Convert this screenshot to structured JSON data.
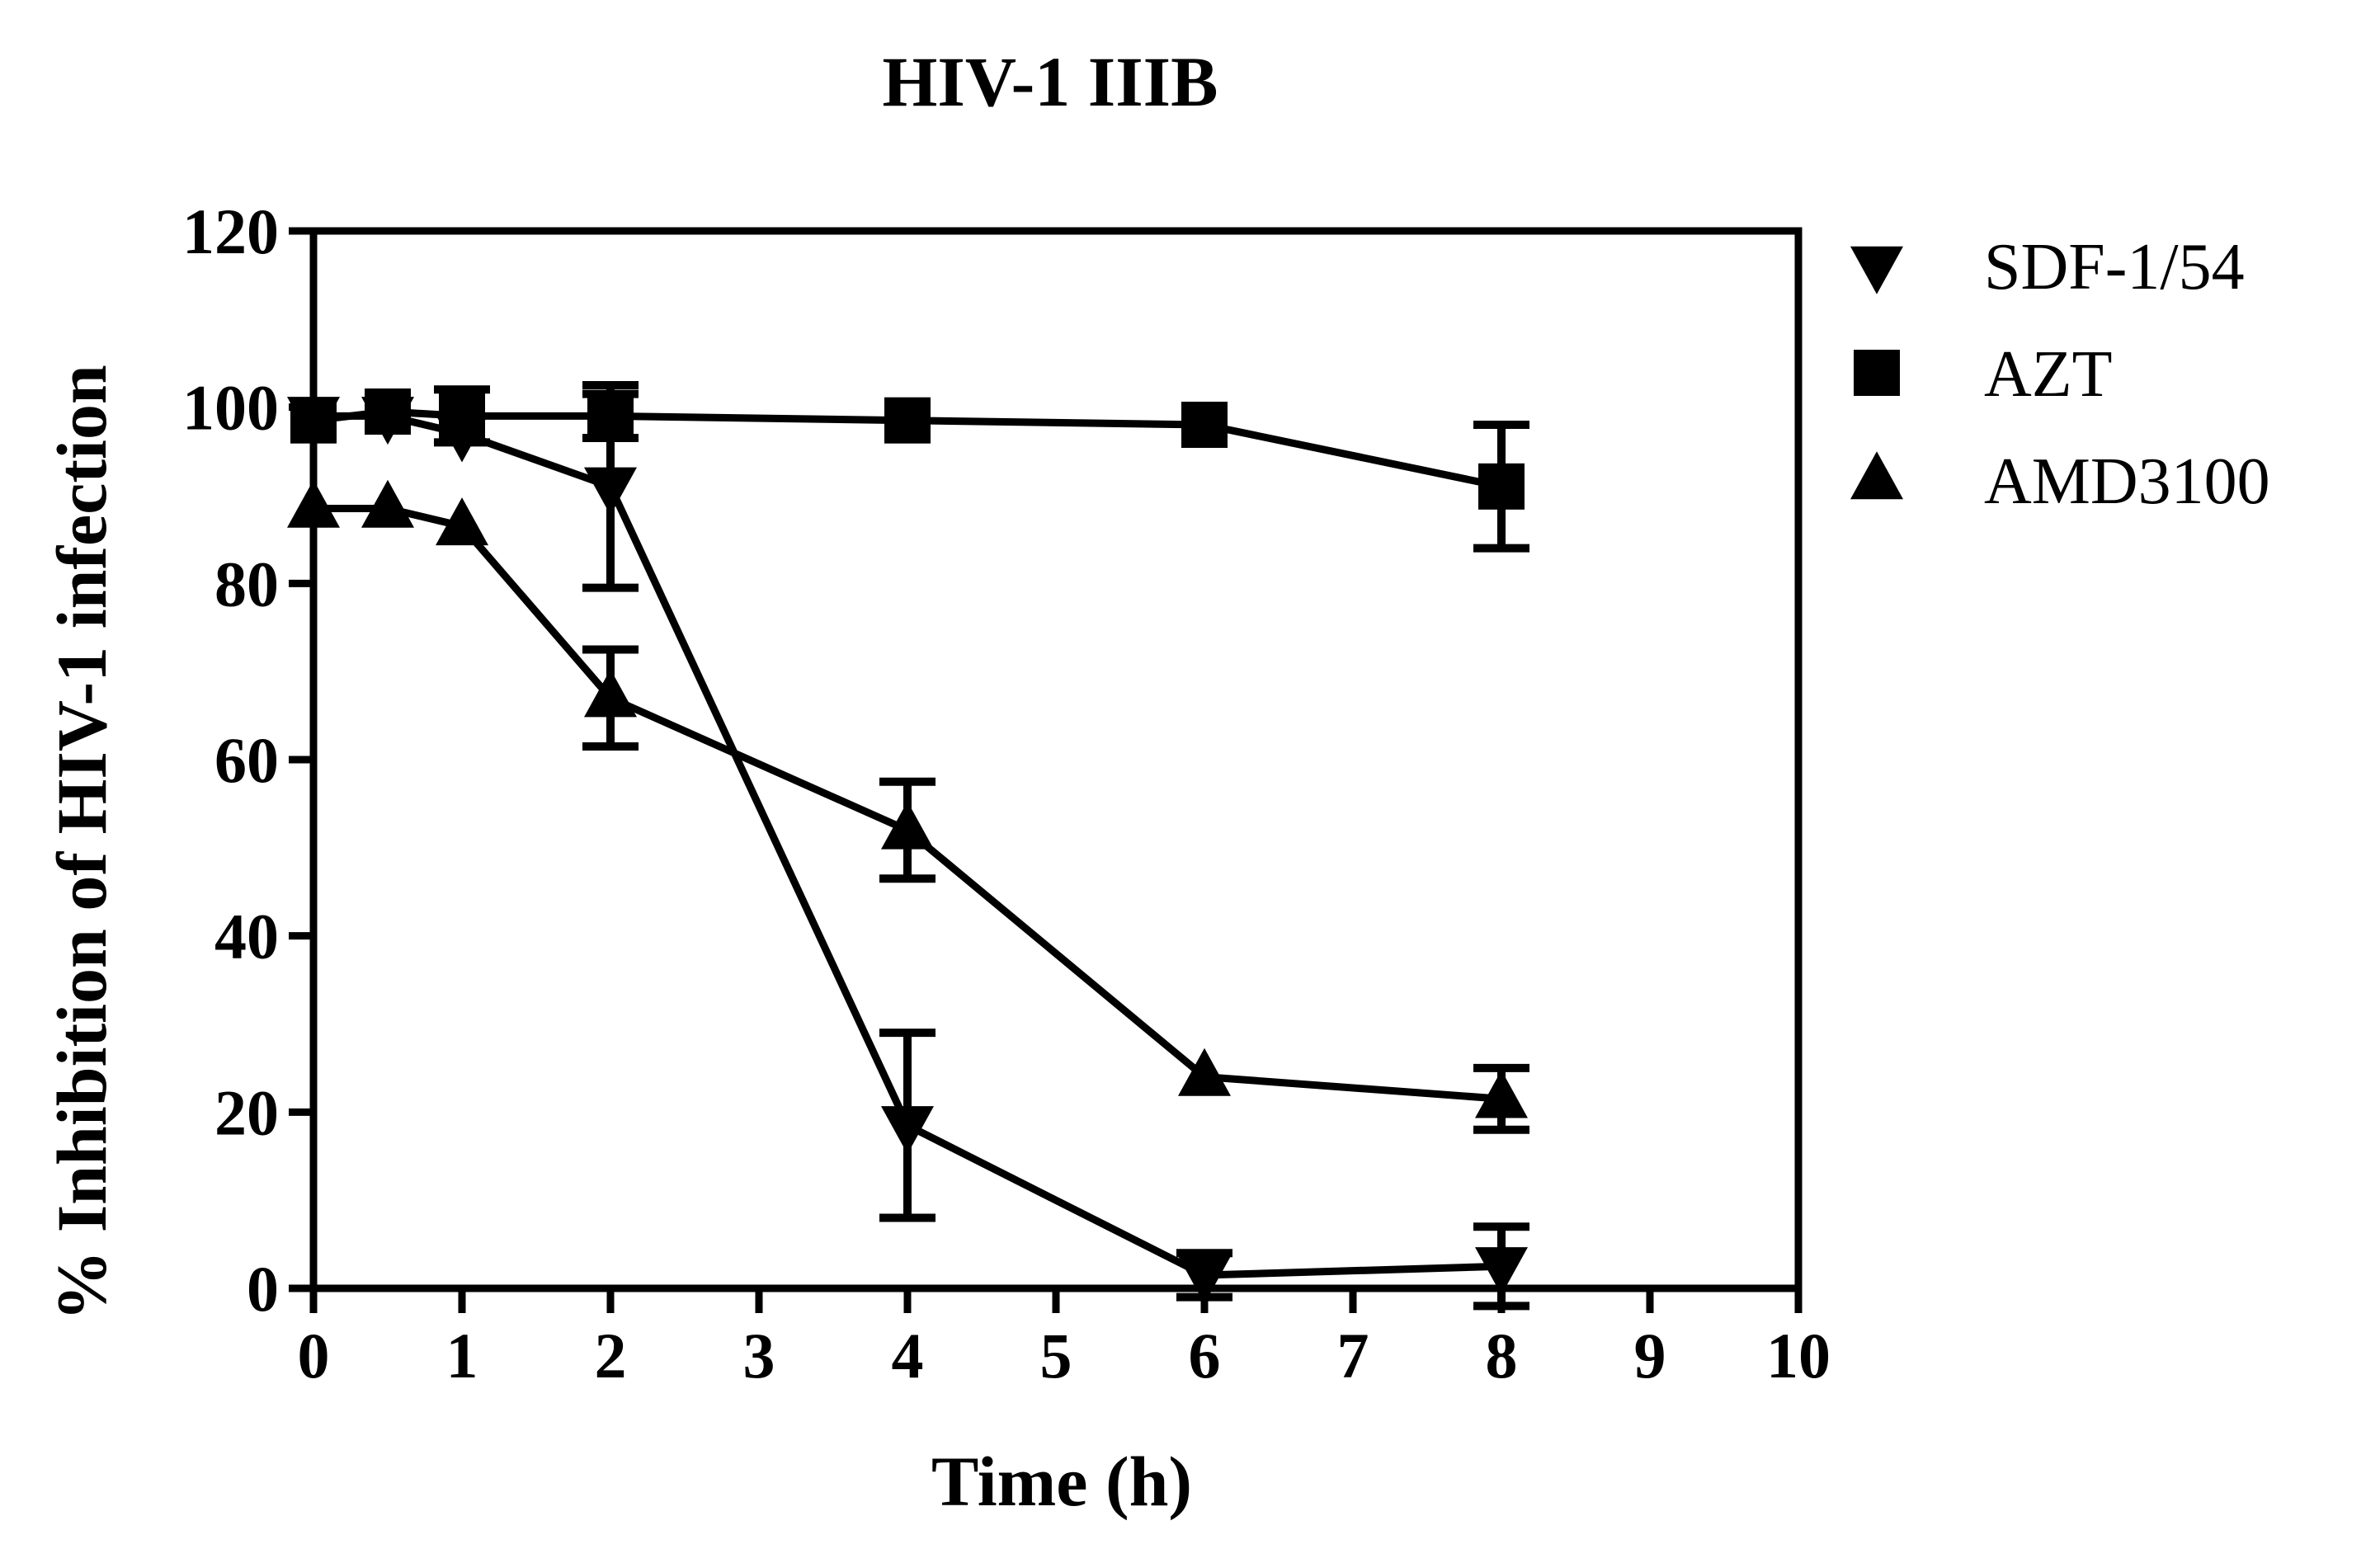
{
  "chart_data": {
    "type": "line",
    "title": "HIV-1 IIIB",
    "xlabel": "Time (h)",
    "ylabel": "% Inhibition of HIV-1 infection",
    "xlim": [
      0,
      10
    ],
    "ylim": [
      0,
      120
    ],
    "xticks": [
      0,
      1,
      2,
      3,
      4,
      5,
      6,
      7,
      8,
      9,
      10
    ],
    "yticks": [
      0,
      20,
      40,
      60,
      80,
      100,
      120
    ],
    "grid": false,
    "legend_position": "right",
    "series": [
      {
        "name": "SDF-1/54",
        "marker": "triangle-down",
        "x": [
          0,
          0.5,
          1,
          2,
          4,
          6,
          8
        ],
        "y": [
          99,
          99,
          97,
          91,
          18.5,
          1.5,
          2.5
        ],
        "error": [
          0,
          0,
          0,
          11.5,
          10.5,
          2.5,
          4.5
        ]
      },
      {
        "name": "AZT",
        "marker": "square",
        "x": [
          0,
          0.5,
          1,
          2,
          4,
          6,
          8
        ],
        "y": [
          98.5,
          99.5,
          99,
          99,
          98.5,
          98,
          91
        ],
        "error": [
          0,
          0,
          3,
          2.5,
          0,
          0,
          7
        ]
      },
      {
        "name": "AMD3100",
        "marker": "triangle-up",
        "x": [
          0,
          0.5,
          1,
          2,
          4,
          6,
          8
        ],
        "y": [
          88.5,
          88.5,
          86.5,
          67,
          52,
          24,
          21.5
        ],
        "error": [
          0,
          0,
          0,
          5.5,
          5.5,
          0,
          3.5
        ]
      }
    ]
  }
}
